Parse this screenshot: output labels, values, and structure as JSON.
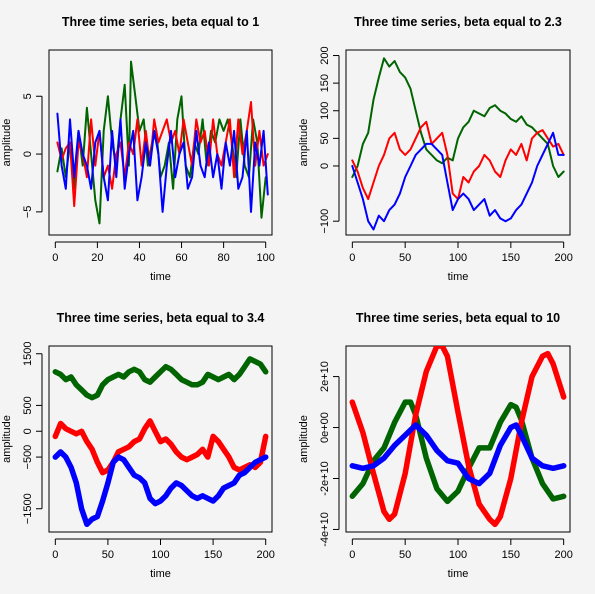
{
  "chart_data": [
    {
      "type": "line",
      "title": "Three time series, beta equal to 1",
      "xlabel": "time",
      "ylabel": "amplitude",
      "xlim": [
        -3,
        103
      ],
      "ylim": [
        -7,
        9
      ],
      "xticks": [
        0,
        20,
        40,
        60,
        80,
        100
      ],
      "yticks": [
        -5,
        0,
        5
      ],
      "series": [
        {
          "color": "#006400",
          "x": [
            1,
            3,
            5,
            7,
            9,
            11,
            13,
            15,
            17,
            19,
            21,
            23,
            25,
            27,
            29,
            31,
            33,
            35,
            36,
            38,
            40,
            42,
            44,
            46,
            48,
            50,
            52,
            54,
            56,
            58,
            60,
            62,
            64,
            66,
            68,
            70,
            72,
            74,
            76,
            78,
            80,
            82,
            84,
            86,
            88,
            90,
            92,
            94,
            96,
            98,
            100
          ],
          "values": [
            -1.5,
            0.5,
            -2,
            1,
            -3,
            2,
            -1,
            4,
            0,
            -4,
            -6,
            2,
            5,
            1,
            -1,
            3,
            6,
            -1,
            8,
            5,
            2,
            3,
            -1,
            1,
            2,
            -2,
            -1,
            1,
            -3,
            3,
            5,
            -1,
            -2,
            1,
            0,
            3,
            -1,
            2,
            1,
            3,
            2,
            3,
            1,
            -2,
            3,
            -1,
            -2,
            3,
            1,
            -5.5,
            -2
          ]
        },
        {
          "color": "#ff0000",
          "x": [
            1,
            3,
            5,
            7,
            9,
            11,
            13,
            15,
            17,
            19,
            21,
            23,
            25,
            27,
            29,
            31,
            33,
            35,
            37,
            39,
            41,
            43,
            45,
            47,
            49,
            51,
            53,
            55,
            57,
            59,
            61,
            63,
            65,
            67,
            69,
            71,
            73,
            75,
            77,
            79,
            81,
            83,
            85,
            87,
            89,
            91,
            93,
            95,
            97,
            99,
            101
          ],
          "values": [
            1,
            -0.5,
            0.5,
            1,
            -4.5,
            1,
            0,
            -2,
            3,
            -1,
            2,
            -2,
            -1,
            -3,
            0,
            1,
            -2,
            1,
            0,
            3,
            -1,
            2,
            -1,
            3,
            1,
            2,
            3,
            1,
            2,
            0,
            3,
            1,
            -1,
            3,
            1,
            2,
            -1,
            3,
            0,
            -1,
            1,
            3,
            -2,
            3,
            0,
            2,
            4.5,
            -1,
            2,
            -1,
            0
          ]
        },
        {
          "color": "#0000ff",
          "x": [
            1,
            3,
            5,
            7,
            9,
            11,
            13,
            15,
            17,
            19,
            21,
            23,
            25,
            27,
            29,
            31,
            33,
            35,
            37,
            39,
            41,
            43,
            45,
            47,
            49,
            51,
            53,
            55,
            57,
            59,
            61,
            63,
            65,
            67,
            69,
            71,
            73,
            75,
            77,
            79,
            81,
            83,
            85,
            87,
            89,
            91,
            93,
            95,
            97,
            99,
            101
          ],
          "values": [
            3.5,
            -1,
            -3,
            3,
            -2,
            2,
            0,
            -1,
            -3,
            1,
            2,
            -2,
            -4,
            2,
            -2,
            3,
            -3,
            0,
            2,
            -4,
            -2,
            1,
            -1,
            2,
            0,
            -5,
            -1,
            2,
            -2,
            0,
            1,
            -3,
            -2,
            2,
            -1,
            -2,
            1,
            -2,
            0,
            -3,
            1,
            -1,
            2,
            -3,
            -2,
            2,
            -5,
            1,
            -1,
            2,
            -3.5
          ]
        }
      ]
    },
    {
      "type": "line",
      "title": "Three time series, beta equal to 2.3",
      "xlabel": "time",
      "ylabel": "amplitude",
      "xlim": [
        -6,
        206
      ],
      "ylim": [
        -125,
        210
      ],
      "xticks": [
        0,
        50,
        100,
        150,
        200
      ],
      "yticks": [
        -100,
        0,
        50,
        100,
        150,
        200
      ],
      "series": [
        {
          "color": "#006400",
          "x": [
            0,
            5,
            10,
            15,
            20,
            25,
            30,
            35,
            40,
            45,
            50,
            55,
            60,
            65,
            70,
            75,
            80,
            85,
            90,
            95,
            100,
            105,
            110,
            115,
            120,
            125,
            130,
            135,
            140,
            145,
            150,
            155,
            160,
            165,
            170,
            175,
            180,
            185,
            190,
            195,
            200
          ],
          "values": [
            -20,
            0,
            40,
            60,
            120,
            160,
            195,
            180,
            190,
            170,
            160,
            140,
            100,
            60,
            30,
            20,
            10,
            5,
            15,
            10,
            50,
            70,
            80,
            100,
            95,
            90,
            105,
            110,
            100,
            95,
            85,
            80,
            90,
            75,
            70,
            60,
            50,
            40,
            0,
            -20,
            -10
          ]
        },
        {
          "color": "#ff0000",
          "x": [
            0,
            5,
            10,
            15,
            20,
            25,
            30,
            35,
            40,
            45,
            50,
            55,
            60,
            65,
            70,
            75,
            80,
            85,
            90,
            95,
            100,
            105,
            110,
            115,
            120,
            125,
            130,
            135,
            140,
            145,
            150,
            155,
            160,
            165,
            170,
            175,
            180,
            185,
            190,
            195,
            200
          ],
          "values": [
            10,
            -10,
            -40,
            -60,
            -30,
            0,
            20,
            50,
            60,
            30,
            20,
            30,
            50,
            70,
            80,
            40,
            50,
            60,
            20,
            -50,
            -60,
            -20,
            -30,
            -10,
            0,
            20,
            10,
            -10,
            -20,
            10,
            30,
            20,
            40,
            10,
            50,
            60,
            65,
            50,
            35,
            40,
            20
          ]
        },
        {
          "color": "#0000ff",
          "x": [
            0,
            5,
            10,
            15,
            20,
            25,
            30,
            35,
            40,
            45,
            50,
            55,
            60,
            65,
            70,
            75,
            80,
            85,
            90,
            95,
            100,
            105,
            110,
            115,
            120,
            125,
            130,
            135,
            140,
            145,
            150,
            155,
            160,
            165,
            170,
            175,
            180,
            185,
            190,
            195,
            200
          ],
          "values": [
            0,
            -30,
            -60,
            -100,
            -115,
            -90,
            -100,
            -80,
            -70,
            -50,
            -20,
            0,
            20,
            30,
            40,
            40,
            30,
            20,
            -30,
            -80,
            -60,
            -50,
            -60,
            -80,
            -70,
            -60,
            -90,
            -80,
            -95,
            -100,
            -95,
            -80,
            -70,
            -50,
            -30,
            0,
            20,
            40,
            60,
            20,
            20
          ]
        }
      ]
    },
    {
      "type": "line",
      "title": "Three time series, beta equal to 3.4",
      "xlabel": "time",
      "ylabel": "amplitude",
      "xlim": [
        -6,
        206
      ],
      "ylim": [
        -1950,
        1650
      ],
      "xticks": [
        0,
        50,
        100,
        150,
        200
      ],
      "yticks": [
        -1500,
        -500,
        0,
        500,
        1500
      ],
      "series": [
        {
          "color": "#006400",
          "x": [
            0,
            5,
            10,
            15,
            20,
            25,
            30,
            35,
            40,
            45,
            50,
            55,
            60,
            65,
            70,
            75,
            80,
            85,
            90,
            95,
            100,
            105,
            110,
            115,
            120,
            125,
            130,
            135,
            140,
            145,
            150,
            155,
            160,
            165,
            170,
            175,
            180,
            185,
            190,
            195,
            200
          ],
          "values": [
            1150,
            1100,
            1000,
            1050,
            900,
            800,
            700,
            650,
            700,
            900,
            1000,
            1050,
            1100,
            1050,
            1150,
            1200,
            1150,
            1000,
            950,
            1050,
            1150,
            1250,
            1200,
            1100,
            1000,
            950,
            900,
            900,
            950,
            1100,
            1050,
            1000,
            1050,
            1100,
            1000,
            1100,
            1250,
            1400,
            1350,
            1300,
            1150
          ]
        },
        {
          "color": "#ff0000",
          "x": [
            0,
            5,
            10,
            15,
            20,
            25,
            30,
            35,
            40,
            45,
            50,
            55,
            60,
            65,
            70,
            75,
            80,
            85,
            90,
            95,
            100,
            105,
            110,
            115,
            120,
            125,
            130,
            135,
            140,
            145,
            150,
            155,
            160,
            165,
            170,
            175,
            180,
            185,
            190,
            195,
            200
          ],
          "values": [
            -100,
            150,
            50,
            0,
            -50,
            0,
            -200,
            -350,
            -600,
            -800,
            -750,
            -600,
            -400,
            -350,
            -300,
            -200,
            -150,
            50,
            200,
            0,
            -200,
            -150,
            -250,
            -400,
            -500,
            -550,
            -500,
            -450,
            -350,
            -500,
            -100,
            -200,
            -350,
            -500,
            -700,
            -750,
            -700,
            -650,
            -700,
            -600,
            -100
          ]
        },
        {
          "color": "#0000ff",
          "x": [
            0,
            5,
            10,
            15,
            20,
            25,
            30,
            35,
            40,
            45,
            50,
            55,
            60,
            65,
            70,
            75,
            80,
            85,
            90,
            95,
            100,
            105,
            110,
            115,
            120,
            125,
            130,
            135,
            140,
            145,
            150,
            155,
            160,
            165,
            170,
            175,
            180,
            185,
            190,
            195,
            200
          ],
          "values": [
            -500,
            -400,
            -500,
            -700,
            -1000,
            -1500,
            -1800,
            -1700,
            -1650,
            -1350,
            -1000,
            -600,
            -500,
            -550,
            -700,
            -850,
            -900,
            -1000,
            -1300,
            -1400,
            -1350,
            -1250,
            -1100,
            -1000,
            -1050,
            -1150,
            -1250,
            -1300,
            -1250,
            -1300,
            -1350,
            -1250,
            -1100,
            -1050,
            -1000,
            -850,
            -800,
            -700,
            -600,
            -550,
            -500
          ]
        }
      ]
    },
    {
      "type": "line",
      "title": "Three time series, beta equal to 10",
      "xlabel": "time",
      "ylabel": "amplitude",
      "xlim": [
        -6,
        206
      ],
      "ylim": [
        -41000000000.0,
        32000000000.0
      ],
      "xticks": [
        0,
        50,
        100,
        150,
        200
      ],
      "ytick_labels": [
        "-4e+10",
        "-2e+10",
        "0e+00",
        "2e+10"
      ],
      "yticks": [
        -40000000000.0,
        -20000000000.0,
        0,
        20000000000.0
      ],
      "series": [
        {
          "color": "#006400",
          "x": [
            0,
            10,
            20,
            30,
            40,
            50,
            55,
            60,
            70,
            80,
            90,
            100,
            110,
            120,
            130,
            140,
            150,
            155,
            160,
            170,
            180,
            190,
            200
          ],
          "values": [
            -27000000000.0,
            -22000000000.0,
            -13000000000.0,
            -8000000000.0,
            2000000000.0,
            10000000000.0,
            10000000000.0,
            5000000000.0,
            -12000000000.0,
            -24000000000.0,
            -29000000000.0,
            -25000000000.0,
            -16000000000.0,
            -8000000000.0,
            -8000000000.0,
            2000000000.0,
            9000000000.0,
            8000000000.0,
            3000000000.0,
            -12000000000.0,
            -22000000000.0,
            -28000000000.0,
            -27000000000.0
          ]
        },
        {
          "color": "#ff0000",
          "x": [
            0,
            10,
            20,
            30,
            35,
            40,
            50,
            60,
            70,
            80,
            85,
            90,
            100,
            110,
            120,
            130,
            135,
            140,
            150,
            160,
            170,
            180,
            185,
            190,
            200
          ],
          "values": [
            10000000000.0,
            -2000000000.0,
            -18000000000.0,
            -33000000000.0,
            -36000000000.0,
            -34000000000.0,
            -18000000000.0,
            5000000000.0,
            22000000000.0,
            32000000000.0,
            32000000000.0,
            28000000000.0,
            6000000000.0,
            -15000000000.0,
            -30000000000.0,
            -36000000000.0,
            -38000000000.0,
            -35000000000.0,
            -20000000000.0,
            2000000000.0,
            20000000000.0,
            28000000000.0,
            29000000000.0,
            25000000000.0,
            12000000000.0
          ]
        },
        {
          "color": "#0000ff",
          "x": [
            0,
            10,
            20,
            30,
            40,
            50,
            60,
            70,
            80,
            90,
            100,
            110,
            120,
            130,
            140,
            150,
            155,
            160,
            170,
            180,
            190,
            200
          ],
          "values": [
            -15000000000.0,
            -16000000000.0,
            -15000000000.0,
            -12000000000.0,
            -7000000000.0,
            -3000000000.0,
            1000000000.0,
            -3000000000.0,
            -9000000000.0,
            -13000000000.0,
            -14000000000.0,
            -20000000000.0,
            -22000000000.0,
            -18000000000.0,
            -7000000000.0,
            0.0,
            1000000000.0,
            -3000000000.0,
            -12000000000.0,
            -15000000000.0,
            -16000000000.0,
            -15000000000.0
          ]
        }
      ]
    }
  ]
}
